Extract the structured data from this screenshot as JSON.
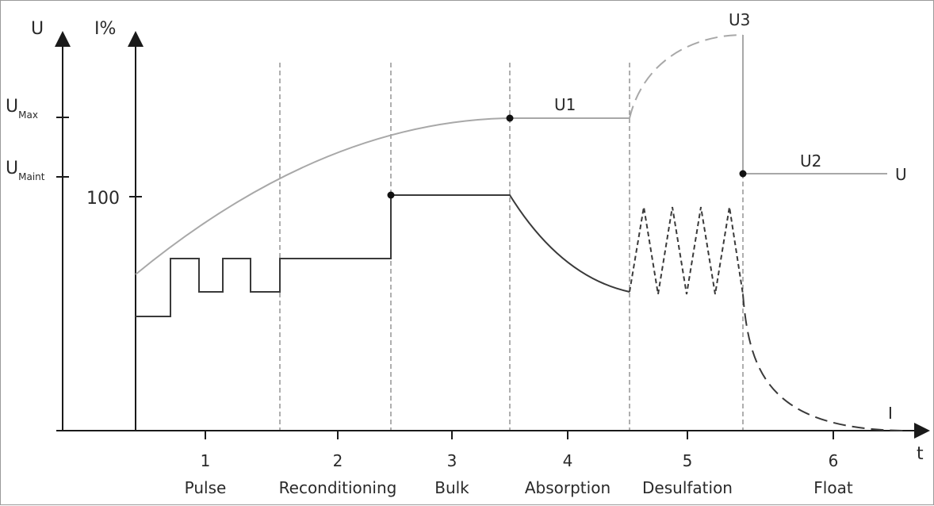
{
  "axes": {
    "u_label": "U",
    "i_label": "I%",
    "t_label": "t",
    "umax_main": "U",
    "umax_sub": "Max",
    "umaint_main": "U",
    "umaint_sub": "Maint",
    "i100_label": "100"
  },
  "curves": {
    "u1_label": "U1",
    "u2_label": "U2",
    "u3_label": "U3",
    "u_end_label": "U",
    "i_end_label": "I"
  },
  "stages": [
    {
      "number": "1",
      "name": "Pulse"
    },
    {
      "number": "2",
      "name": "Reconditioning"
    },
    {
      "number": "3",
      "name": "Bulk"
    },
    {
      "number": "4",
      "name": "Absorption"
    },
    {
      "number": "5",
      "name": "Desulfation"
    },
    {
      "number": "6",
      "name": "Float"
    }
  ],
  "colors": {
    "voltage_curve": "#a8a8a8",
    "current_curve": "#3a3a3a",
    "axis": "#1a1a1a",
    "divider": "#7a7a7a"
  }
}
